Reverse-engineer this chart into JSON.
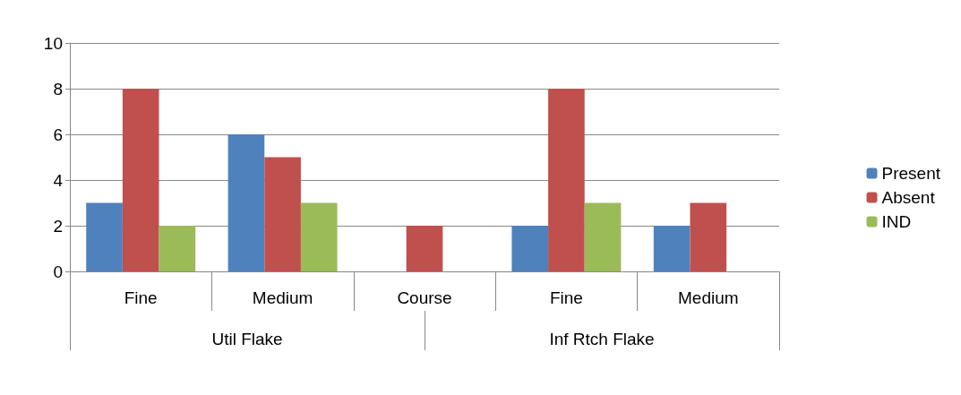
{
  "chart_data": {
    "type": "bar",
    "categories": [
      "Fine",
      "Medium",
      "Course",
      "Fine",
      "Medium"
    ],
    "annotations": [
      "Util Flake",
      "Inf Rtch Flake"
    ],
    "series": [
      {
        "name": "Present",
        "color": "#4f81bd",
        "values": [
          3,
          6,
          null,
          2,
          2
        ]
      },
      {
        "name": "Absent",
        "color": "#c0504d",
        "values": [
          8,
          5,
          2,
          8,
          3
        ]
      },
      {
        "name": "IND",
        "color": "#9bbb59",
        "values": [
          2,
          3,
          null,
          3,
          null
        ]
      }
    ],
    "ylim": [
      0,
      10
    ],
    "yticks": [
      0,
      2,
      4,
      6,
      8,
      10
    ],
    "grid": "y",
    "legend": "right"
  }
}
